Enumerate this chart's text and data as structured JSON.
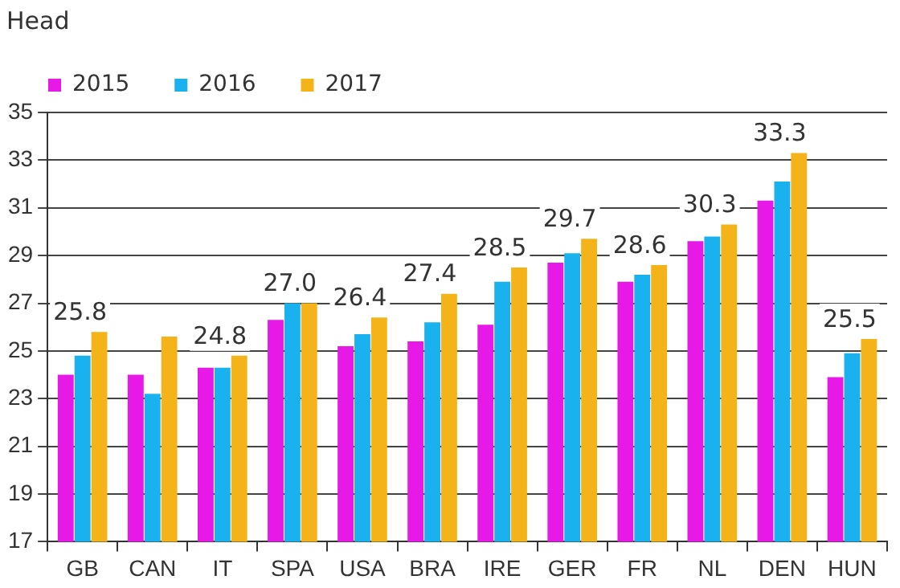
{
  "chart_data": {
    "type": "bar",
    "ylabel": "Head",
    "categories": [
      "GB",
      "CAN",
      "IT",
      "SPA",
      "USA",
      "BRA",
      "IRE",
      "GER",
      "FR",
      "NL",
      "DEN",
      "HUN"
    ],
    "series": [
      {
        "name": "2015",
        "color": "#e619e6",
        "values": [
          24.0,
          24.0,
          24.3,
          26.3,
          25.2,
          25.4,
          26.1,
          28.7,
          27.9,
          29.6,
          31.3,
          23.9
        ]
      },
      {
        "name": "2016",
        "color": "#1ab2ee",
        "values": [
          24.8,
          23.2,
          24.3,
          27.0,
          25.7,
          26.2,
          27.9,
          29.1,
          28.2,
          29.8,
          32.1,
          24.9
        ]
      },
      {
        "name": "2017",
        "color": "#f5b31a",
        "values": [
          25.8,
          25.6,
          24.8,
          27.0,
          26.4,
          27.4,
          28.5,
          29.7,
          28.6,
          30.3,
          33.3,
          25.5
        ],
        "value_labels": [
          "25.8",
          null,
          "24.8",
          "27.0",
          "26.4",
          "27.4",
          "28.5",
          "29.7",
          "28.6",
          "30.3",
          "33.3",
          "25.5"
        ]
      }
    ],
    "ylim": [
      17,
      35
    ],
    "yticks": [
      17,
      19,
      21,
      23,
      25,
      27,
      29,
      31,
      33,
      35
    ],
    "grid": "y",
    "legend": "top left"
  }
}
